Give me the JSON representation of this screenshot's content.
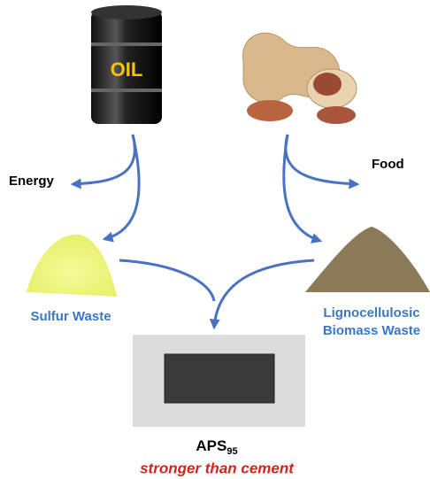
{
  "labels": {
    "oil": "OIL",
    "energy": "Energy",
    "food": "Food",
    "sulfur": "Sulfur Waste",
    "biomass": [
      "Lignocellulosic",
      "Biomass Waste"
    ],
    "product": {
      "name": "APS",
      "subscript": "95"
    },
    "tagline": "stronger than cement"
  }
}
